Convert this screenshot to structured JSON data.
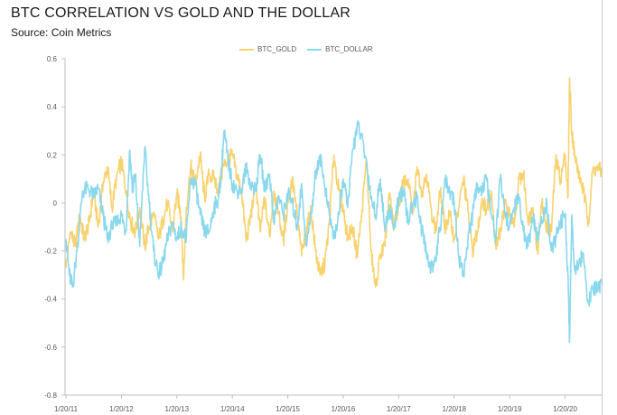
{
  "title": "BTC CORRELATION VS GOLD AND THE DOLLAR",
  "subtitle": "Source: Coin Metrics",
  "chart_data": {
    "type": "line",
    "title": "BTC CORRELATION VS GOLD AND THE DOLLAR",
    "subtitle": "Source: Coin Metrics",
    "xlabel": "",
    "ylabel": "",
    "ylim": [
      -0.8,
      0.6
    ],
    "yticks": [
      "0.6",
      "0.4",
      "0.2",
      "0",
      "-0.2",
      "-0.4",
      "-0.6",
      "-0.8"
    ],
    "xticks": [
      "1/20/11",
      "1/20/12",
      "1/20/13",
      "1/20/14",
      "1/20/15",
      "1/20/16",
      "1/20/17",
      "1/20/18",
      "1/20/19",
      "1/20/20"
    ],
    "xlim": [
      2011.0,
      2020.7
    ],
    "grid": false,
    "legend_position": "top",
    "colors": {
      "BTC_GOLD": "#f7d26e",
      "BTC_DOLLAR": "#8ad8ee",
      "axis": "#bfbfbf"
    },
    "series": [
      {
        "name": "BTC_GOLD",
        "x": [
          2011.0,
          2011.08,
          2011.17,
          2011.25,
          2011.33,
          2011.42,
          2011.5,
          2011.58,
          2011.67,
          2011.75,
          2011.83,
          2011.92,
          2012.0,
          2012.08,
          2012.17,
          2012.25,
          2012.33,
          2012.42,
          2012.5,
          2012.58,
          2012.67,
          2012.75,
          2012.83,
          2012.92,
          2013.0,
          2013.08,
          2013.12,
          2013.17,
          2013.25,
          2013.33,
          2013.42,
          2013.5,
          2013.58,
          2013.67,
          2013.75,
          2013.83,
          2013.92,
          2014.0,
          2014.08,
          2014.17,
          2014.25,
          2014.33,
          2014.42,
          2014.5,
          2014.58,
          2014.67,
          2014.75,
          2014.83,
          2014.92,
          2015.0,
          2015.08,
          2015.17,
          2015.25,
          2015.33,
          2015.42,
          2015.5,
          2015.58,
          2015.67,
          2015.75,
          2015.83,
          2015.92,
          2016.0,
          2016.08,
          2016.17,
          2016.25,
          2016.33,
          2016.42,
          2016.5,
          2016.58,
          2016.67,
          2016.75,
          2016.83,
          2016.92,
          2017.0,
          2017.08,
          2017.17,
          2017.25,
          2017.33,
          2017.42,
          2017.5,
          2017.58,
          2017.67,
          2017.75,
          2017.83,
          2017.92,
          2018.0,
          2018.08,
          2018.17,
          2018.25,
          2018.33,
          2018.42,
          2018.5,
          2018.58,
          2018.67,
          2018.75,
          2018.83,
          2018.92,
          2019.0,
          2019.08,
          2019.17,
          2019.25,
          2019.33,
          2019.42,
          2019.5,
          2019.58,
          2019.67,
          2019.75,
          2019.83,
          2019.92,
          2020.0,
          2020.05,
          2020.08,
          2020.12,
          2020.17,
          2020.25,
          2020.33,
          2020.42,
          2020.5,
          2020.58,
          2020.67
        ],
        "values": [
          -0.27,
          -0.12,
          -0.18,
          -0.05,
          -0.15,
          -0.08,
          0.05,
          -0.1,
          0.08,
          0.15,
          -0.02,
          0.12,
          0.17,
          0.05,
          -0.08,
          -0.12,
          -0.02,
          -0.18,
          -0.1,
          -0.05,
          -0.15,
          -0.07,
          0.0,
          -0.12,
          0.04,
          -0.06,
          -0.32,
          -0.02,
          0.15,
          0.08,
          0.2,
          0.02,
          0.12,
          0.1,
          0.05,
          0.15,
          0.18,
          0.2,
          0.12,
          0.04,
          -0.16,
          -0.06,
          0.08,
          -0.12,
          0.02,
          -0.14,
          0.05,
          -0.04,
          -0.16,
          0.0,
          0.1,
          -0.05,
          -0.22,
          -0.12,
          -0.03,
          -0.2,
          -0.3,
          -0.25,
          -0.08,
          0.2,
          0.05,
          -0.03,
          -0.14,
          -0.1,
          -0.22,
          -0.05,
          0.18,
          -0.2,
          -0.35,
          -0.22,
          -0.18,
          0.03,
          -0.1,
          0.0,
          0.08,
          0.1,
          -0.05,
          0.15,
          0.05,
          0.12,
          -0.02,
          -0.12,
          0.05,
          -0.1,
          -0.05,
          -0.15,
          -0.02,
          0.1,
          -0.04,
          -0.2,
          -0.12,
          0.02,
          -0.03,
          0.05,
          -0.18,
          -0.12,
          0.0,
          -0.05,
          -0.1,
          0.1,
          0.12,
          -0.08,
          -0.02,
          -0.2,
          0.0,
          -0.1,
          -0.12,
          0.18,
          0.1,
          0.2,
          0.02,
          0.52,
          0.3,
          0.2,
          0.12,
          0.05,
          -0.08,
          0.14,
          0.14,
          0.13
        ]
      },
      {
        "name": "BTC_DOLLAR",
        "x": [
          2011.0,
          2011.06,
          2011.12,
          2011.2,
          2011.3,
          2011.4,
          2011.5,
          2011.58,
          2011.67,
          2011.75,
          2011.83,
          2011.92,
          2012.0,
          2012.08,
          2012.15,
          2012.2,
          2012.25,
          2012.33,
          2012.42,
          2012.5,
          2012.58,
          2012.67,
          2012.75,
          2012.83,
          2012.92,
          2013.0,
          2013.08,
          2013.17,
          2013.25,
          2013.33,
          2013.42,
          2013.5,
          2013.58,
          2013.67,
          2013.75,
          2013.8,
          2013.85,
          2013.92,
          2014.0,
          2014.08,
          2014.17,
          2014.25,
          2014.33,
          2014.42,
          2014.5,
          2014.58,
          2014.67,
          2014.75,
          2014.83,
          2014.92,
          2015.0,
          2015.08,
          2015.17,
          2015.25,
          2015.33,
          2015.42,
          2015.5,
          2015.58,
          2015.67,
          2015.75,
          2015.83,
          2015.92,
          2016.0,
          2016.08,
          2016.17,
          2016.25,
          2016.33,
          2016.42,
          2016.5,
          2016.58,
          2016.67,
          2016.75,
          2016.83,
          2016.92,
          2017.0,
          2017.08,
          2017.17,
          2017.25,
          2017.33,
          2017.42,
          2017.5,
          2017.58,
          2017.67,
          2017.75,
          2017.83,
          2017.92,
          2018.0,
          2018.08,
          2018.17,
          2018.25,
          2018.33,
          2018.42,
          2018.5,
          2018.58,
          2018.67,
          2018.75,
          2018.83,
          2018.92,
          2019.0,
          2019.08,
          2019.17,
          2019.25,
          2019.33,
          2019.42,
          2019.5,
          2019.58,
          2019.67,
          2019.75,
          2019.83,
          2019.92,
          2020.0,
          2020.05,
          2020.08,
          2020.1,
          2020.12,
          2020.17,
          2020.25,
          2020.33,
          2020.42,
          2020.5,
          2020.58,
          2020.67
        ],
        "values": [
          -0.15,
          -0.3,
          -0.35,
          -0.2,
          0.05,
          0.06,
          0.03,
          0.06,
          -0.05,
          -0.15,
          -0.1,
          -0.08,
          -0.05,
          -0.12,
          0.22,
          0.05,
          0.12,
          -0.18,
          0.23,
          0.0,
          -0.2,
          -0.3,
          -0.25,
          -0.15,
          -0.08,
          -0.15,
          -0.1,
          -0.15,
          0.1,
          0.08,
          -0.05,
          -0.12,
          -0.12,
          -0.02,
          0.02,
          0.12,
          0.3,
          0.18,
          0.08,
          0.05,
          0.06,
          0.15,
          0.08,
          0.05,
          0.2,
          0.06,
          0.12,
          -0.08,
          0.03,
          -0.05,
          0.04,
          0.0,
          -0.1,
          0.08,
          -0.18,
          -0.05,
          0.12,
          0.2,
          0.06,
          -0.05,
          -0.15,
          -0.05,
          0.1,
          -0.02,
          0.22,
          0.32,
          0.28,
          0.16,
          0.03,
          -0.05,
          0.1,
          -0.12,
          -0.02,
          -0.1,
          0.02,
          0.05,
          -0.08,
          0.0,
          0.02,
          -0.12,
          -0.2,
          -0.28,
          -0.22,
          -0.1,
          0.1,
          0.04,
          0.0,
          -0.22,
          -0.3,
          -0.15,
          -0.05,
          0.08,
          0.05,
          0.1,
          -0.05,
          -0.15,
          0.1,
          -0.05,
          -0.1,
          -0.02,
          0.02,
          -0.12,
          -0.18,
          -0.06,
          -0.15,
          -0.08,
          0.0,
          -0.2,
          -0.15,
          -0.08,
          -0.05,
          -0.3,
          -0.58,
          -0.28,
          -0.05,
          -0.28,
          -0.25,
          -0.22,
          -0.42,
          -0.36,
          -0.36,
          -0.34
        ]
      }
    ]
  }
}
